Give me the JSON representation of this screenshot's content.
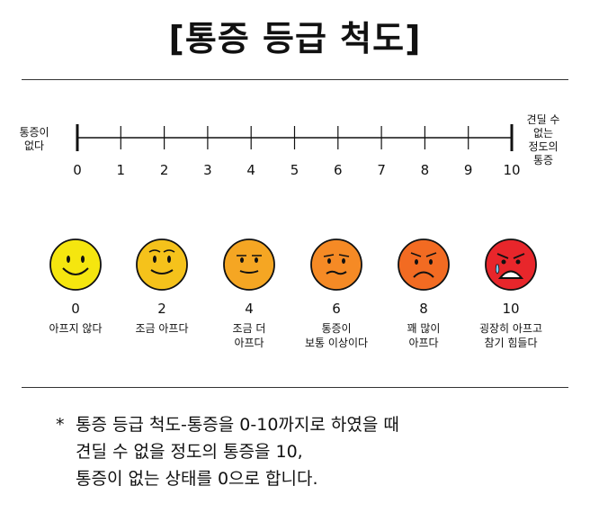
{
  "title": "[통증 등급 척도]",
  "scale": {
    "left_label": "통증이\n없다",
    "right_label": "견딜 수\n없는\n정도의\n통증",
    "ticks": [
      "0",
      "1",
      "2",
      "3",
      "4",
      "5",
      "6",
      "7",
      "8",
      "9",
      "10"
    ]
  },
  "faces": [
    {
      "value": "0",
      "label": "아프지 않다",
      "color": "#f5e60f",
      "mouth": "big-smile"
    },
    {
      "value": "2",
      "label": "조금 아프다",
      "color": "#f5c21b",
      "mouth": "smile"
    },
    {
      "value": "4",
      "label": "조금 더\n아프다",
      "color": "#f5a623",
      "mouth": "slight-smile"
    },
    {
      "value": "6",
      "label": "통증이\n보통 이상이다",
      "color": "#f58a25",
      "mouth": "wavy"
    },
    {
      "value": "8",
      "label": "꽤 많이\n아프다",
      "color": "#f26b22",
      "mouth": "frown"
    },
    {
      "value": "10",
      "label": "굉장히 아프고\n참기 힘들다",
      "color": "#e8262b",
      "mouth": "crying"
    }
  ],
  "note": {
    "marker": "*",
    "text": "통증 등급 척도-통증을 0-10까지로 하였을 때\n견딜 수 없을 정도의 통증을 10,\n통증이 없는 상태를  0으로 합니다."
  }
}
